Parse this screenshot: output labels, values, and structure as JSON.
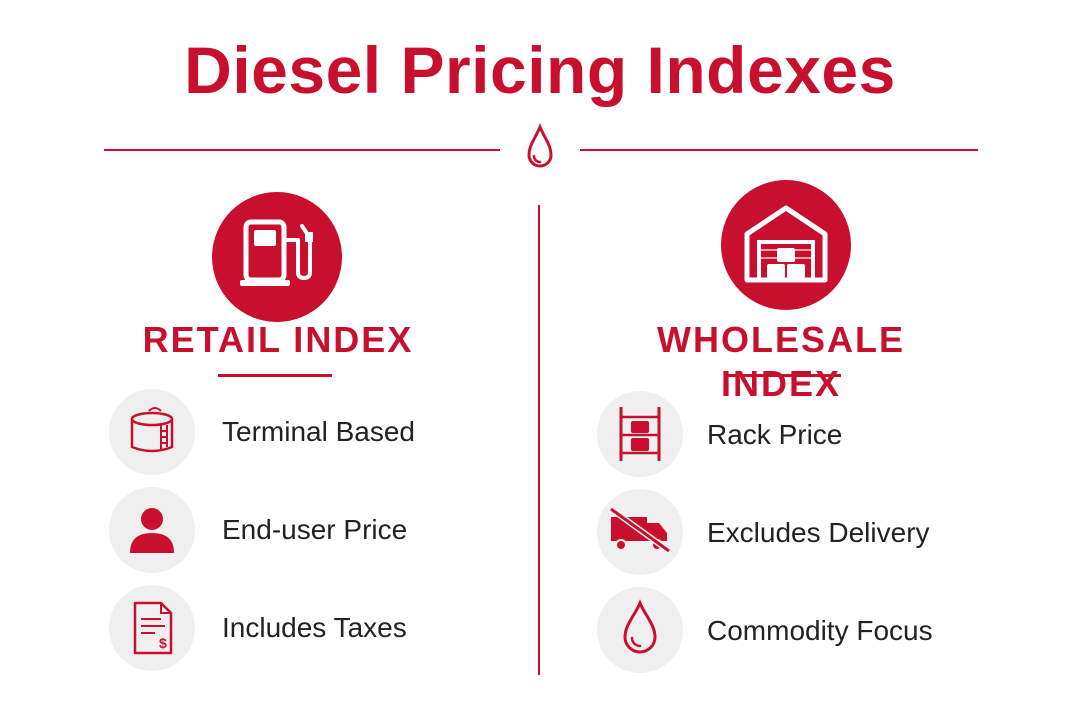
{
  "title": "Diesel Pricing Indexes",
  "colors": {
    "accent": "#c8102e",
    "text": "#222222",
    "icon_bg": "#f0efef"
  },
  "retail": {
    "heading": "RETAIL INDEX",
    "hero_icon": "fuel-pump-icon",
    "items": [
      {
        "label": "Terminal Based",
        "icon": "storage-tank-icon"
      },
      {
        "label": "End-user Price",
        "icon": "person-icon"
      },
      {
        "label": "Includes Taxes",
        "icon": "tax-document-icon"
      }
    ]
  },
  "wholesale": {
    "heading": "WHOLESALE INDEX",
    "hero_icon": "warehouse-barrels-icon",
    "items": [
      {
        "label": "Rack Price",
        "icon": "barrel-rack-icon"
      },
      {
        "label": "Excludes Delivery",
        "icon": "no-delivery-truck-icon"
      },
      {
        "label": "Commodity Focus",
        "icon": "oil-drop-icon"
      }
    ]
  }
}
